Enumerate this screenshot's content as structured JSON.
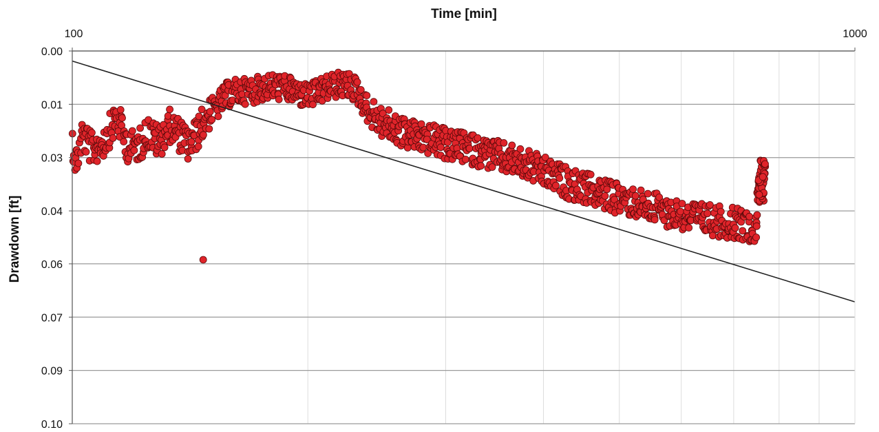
{
  "chart_data": {
    "type": "scatter",
    "xlabel": "Time [min]",
    "ylabel": "Drawdown [ft]",
    "x_scale": "log",
    "xlim": [
      100,
      1000
    ],
    "ylim": [
      0.1,
      0.0
    ],
    "y_inverted": true,
    "x_tick_labels": [
      "100",
      "1000"
    ],
    "y_tick_labels": [
      "0.00",
      "0.01",
      "0.03",
      "0.04",
      "0.06",
      "0.07",
      "0.09",
      "0.10"
    ],
    "y_tick_values": [
      0.0,
      0.0143,
      0.0286,
      0.0429,
      0.0571,
      0.0714,
      0.0857,
      0.1
    ],
    "grid": true,
    "colors": {
      "points": "#e0242a",
      "point_edge": "#5a0a0a",
      "trend": "#222222",
      "grid": "#9a9a9a",
      "minor_grid": "#dddddd"
    },
    "trend_line": {
      "x": [
        100,
        1000
      ],
      "y": [
        0.0027,
        0.0673
      ]
    },
    "anchor_points": [
      [
        100,
        0.0235
      ],
      [
        101,
        0.0302
      ],
      [
        103,
        0.0224
      ],
      [
        106,
        0.0265
      ],
      [
        110,
        0.024
      ],
      [
        114,
        0.0175
      ],
      [
        118,
        0.026
      ],
      [
        122,
        0.025
      ],
      [
        125,
        0.0218
      ],
      [
        129,
        0.0245
      ],
      [
        133,
        0.02
      ],
      [
        137,
        0.0225
      ],
      [
        141,
        0.0255
      ],
      [
        145,
        0.0214
      ],
      [
        149,
        0.017
      ],
      [
        153,
        0.015
      ],
      [
        157,
        0.012
      ],
      [
        161,
        0.011
      ],
      [
        166,
        0.0108
      ],
      [
        171,
        0.0105
      ],
      [
        176,
        0.0098
      ],
      [
        181,
        0.0095
      ],
      [
        187,
        0.01
      ],
      [
        193,
        0.011
      ],
      [
        199,
        0.012
      ],
      [
        205,
        0.0115
      ],
      [
        211,
        0.01
      ],
      [
        217,
        0.0092
      ],
      [
        222,
        0.009
      ],
      [
        227,
        0.0094
      ],
      [
        231,
        0.0106
      ],
      [
        235,
        0.0135
      ],
      [
        240,
        0.0165
      ],
      [
        248,
        0.019
      ],
      [
        258,
        0.0208
      ],
      [
        268,
        0.0222
      ],
      [
        280,
        0.0232
      ],
      [
        292,
        0.0242
      ],
      [
        305,
        0.0255
      ],
      [
        318,
        0.026
      ],
      [
        332,
        0.027
      ],
      [
        346,
        0.028
      ],
      [
        360,
        0.029
      ],
      [
        375,
        0.03
      ],
      [
        390,
        0.0315
      ],
      [
        405,
        0.033
      ],
      [
        420,
        0.0345
      ],
      [
        436,
        0.036
      ],
      [
        452,
        0.0368
      ],
      [
        470,
        0.038
      ],
      [
        490,
        0.0392
      ],
      [
        510,
        0.04
      ],
      [
        530,
        0.041
      ],
      [
        552,
        0.042
      ],
      [
        575,
        0.043
      ],
      [
        600,
        0.044
      ],
      [
        625,
        0.0446
      ],
      [
        650,
        0.0452
      ],
      [
        675,
        0.0458
      ],
      [
        700,
        0.0462
      ],
      [
        720,
        0.0466
      ],
      [
        738,
        0.047
      ],
      [
        748,
        0.0485
      ],
      [
        752,
        0.042
      ],
      [
        756,
        0.036
      ],
      [
        760,
        0.032
      ],
      [
        764,
        0.03
      ],
      [
        768,
        0.0295
      ]
    ],
    "outliers": [
      [
        147,
        0.056
      ]
    ],
    "right_edge_points": [
      [
        748,
        0.05
      ],
      [
        749,
        0.047
      ],
      [
        750,
        0.044
      ],
      [
        751,
        0.04
      ],
      [
        752,
        0.037
      ],
      [
        753,
        0.035
      ],
      [
        754,
        0.034
      ],
      [
        756,
        0.033
      ],
      [
        758,
        0.032
      ],
      [
        760,
        0.031
      ],
      [
        762,
        0.03
      ],
      [
        764,
        0.03
      ],
      [
        766,
        0.0305
      ],
      [
        768,
        0.031
      ],
      [
        766,
        0.033
      ],
      [
        764,
        0.035
      ],
      [
        762,
        0.036
      ],
      [
        758,
        0.0345
      ],
      [
        754,
        0.036
      ],
      [
        750,
        0.038
      ]
    ]
  }
}
